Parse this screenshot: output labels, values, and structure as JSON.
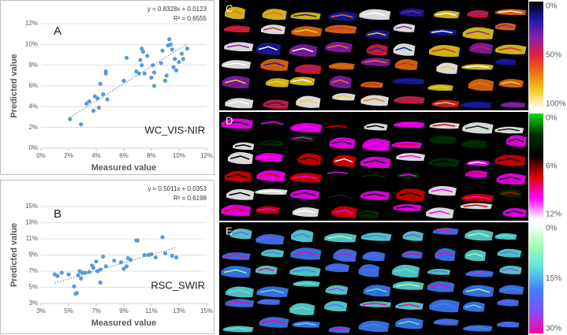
{
  "chart_data": [
    {
      "type": "scatter",
      "panel_label": "A",
      "annotation": "WC_VIS-NIR",
      "equation": "y = 0.8328x + 0.0123",
      "r_squared": "R² = 0.6555",
      "trendline": {
        "slope": 0.8328,
        "intercept": 0.0123
      },
      "x_label": "Measured value",
      "y_label": "Predicted value",
      "color": "#5b9bd5",
      "grid": true,
      "xlim": [
        0,
        0.12
      ],
      "ylim": [
        0,
        0.12
      ],
      "xticks": [
        {
          "value": 0,
          "label": "0%"
        },
        {
          "value": 0.02,
          "label": "2%"
        },
        {
          "value": 0.04,
          "label": "4%"
        },
        {
          "value": 0.06,
          "label": "6%"
        },
        {
          "value": 0.08,
          "label": "8%"
        },
        {
          "value": 0.1,
          "label": "10%"
        },
        {
          "value": 0.12,
          "label": "12%"
        }
      ],
      "yticks": [
        {
          "value": 0,
          "label": "0%"
        },
        {
          "value": 0.02,
          "label": "2%"
        },
        {
          "value": 0.04,
          "label": "4%"
        },
        {
          "value": 0.06,
          "label": "6%"
        },
        {
          "value": 0.08,
          "label": "8%"
        },
        {
          "value": 0.1,
          "label": "10%"
        },
        {
          "value": 0.12,
          "label": "12%"
        }
      ],
      "x": [
        0.021,
        0.029,
        0.033,
        0.035,
        0.038,
        0.039,
        0.041,
        0.042,
        0.043,
        0.045,
        0.047,
        0.047,
        0.048,
        0.06,
        0.062,
        0.069,
        0.071,
        0.072,
        0.073,
        0.073,
        0.074,
        0.075,
        0.077,
        0.08,
        0.082,
        0.081,
        0.082,
        0.087,
        0.09,
        0.091,
        0.092,
        0.093,
        0.094,
        0.095,
        0.096,
        0.097,
        0.098,
        0.1,
        0.103,
        0.106,
        0.102,
        0.088
      ],
      "y": [
        0.028,
        0.023,
        0.043,
        0.045,
        0.036,
        0.05,
        0.048,
        0.039,
        0.062,
        0.052,
        0.072,
        0.074,
        0.047,
        0.065,
        0.087,
        0.074,
        0.072,
        0.085,
        0.096,
        0.08,
        0.093,
        0.072,
        0.089,
        0.068,
        0.06,
        0.08,
        0.073,
        0.082,
        0.065,
        0.07,
        0.099,
        0.105,
        0.1,
        0.095,
        0.078,
        0.086,
        0.075,
        0.083,
        0.086,
        0.096,
        0.091,
        0.094
      ]
    },
    {
      "type": "scatter",
      "panel_label": "B",
      "annotation": "RSC_SWIR",
      "equation": "y = 0.5011x + 0.0353",
      "r_squared": "R² = 0.6198",
      "trendline": {
        "slope": 0.5011,
        "intercept": 0.0353
      },
      "x_label": "Measured value",
      "y_label": "Predicted value",
      "color": "#5b9bd5",
      "grid": true,
      "xlim": [
        0.03,
        0.15
      ],
      "ylim": [
        0.03,
        0.15
      ],
      "xticks": [
        {
          "value": 0.03,
          "label": "3%"
        },
        {
          "value": 0.05,
          "label": "5%"
        },
        {
          "value": 0.07,
          "label": "7%"
        },
        {
          "value": 0.09,
          "label": "9%"
        },
        {
          "value": 0.11,
          "label": "11%"
        },
        {
          "value": 0.13,
          "label": "13%"
        },
        {
          "value": 0.15,
          "label": "15%"
        }
      ],
      "yticks": [
        {
          "value": 0.03,
          "label": "3%"
        },
        {
          "value": 0.05,
          "label": "5%"
        },
        {
          "value": 0.07,
          "label": "7%"
        },
        {
          "value": 0.09,
          "label": "9%"
        },
        {
          "value": 0.11,
          "label": "11%"
        },
        {
          "value": 0.13,
          "label": "13%"
        },
        {
          "value": 0.15,
          "label": "15%"
        }
      ],
      "x": [
        0.04,
        0.042,
        0.045,
        0.05,
        0.054,
        0.055,
        0.056,
        0.057,
        0.058,
        0.059,
        0.06,
        0.062,
        0.065,
        0.067,
        0.068,
        0.07,
        0.071,
        0.073,
        0.073,
        0.075,
        0.077,
        0.083,
        0.088,
        0.09,
        0.092,
        0.093,
        0.095,
        0.099,
        0.1,
        0.105,
        0.108,
        0.11,
        0.113,
        0.118,
        0.12,
        0.125,
        0.128
      ],
      "y": [
        0.066,
        0.064,
        0.068,
        0.066,
        0.051,
        0.042,
        0.043,
        0.065,
        0.07,
        0.061,
        0.068,
        0.068,
        0.069,
        0.077,
        0.074,
        0.082,
        0.07,
        0.072,
        0.056,
        0.088,
        0.076,
        0.083,
        0.081,
        0.073,
        0.076,
        0.086,
        0.084,
        0.108,
        0.108,
        0.09,
        0.09,
        0.091,
        0.087,
        0.112,
        0.092,
        0.089,
        0.087
      ]
    }
  ],
  "image_panels": [
    {
      "label": "C",
      "colorbar_labels": [
        "0%",
        "50%",
        "100%"
      ],
      "colorbar_colors": [
        "#000000",
        "#1a1aa8",
        "#8a1fb0",
        "#e0203a",
        "#f07010",
        "#f0d020",
        "#ffffff"
      ]
    },
    {
      "label": "D",
      "colorbar_labels": [
        "0%",
        "6%",
        "12%"
      ],
      "colorbar_colors": [
        "#00e000",
        "#003000",
        "#000000",
        "#e00000",
        "#ff00ff",
        "#ffffff"
      ]
    },
    {
      "label": "E",
      "colorbar_labels": [
        "0%",
        "15%",
        "30%"
      ],
      "colorbar_colors": [
        "#ffffff",
        "#a0ffb0",
        "#60e0e0",
        "#4080ff",
        "#8050ff",
        "#ff00a0"
      ]
    }
  ]
}
